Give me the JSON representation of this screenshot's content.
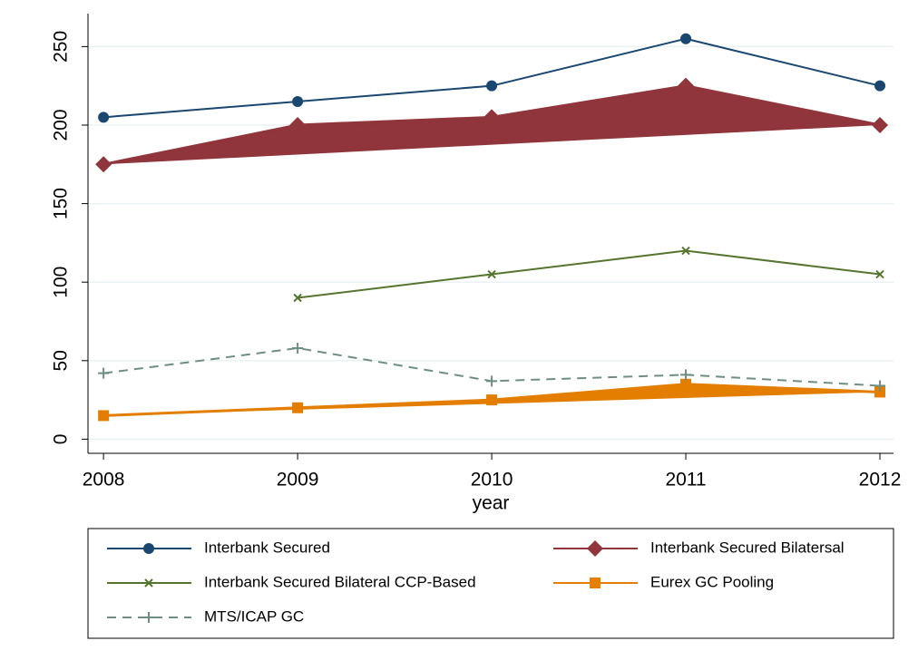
{
  "chart_data": {
    "type": "line",
    "x_label": "year",
    "x": [
      2008,
      2009,
      2010,
      2011,
      2012
    ],
    "xlim": [
      2007.92,
      2012.07
    ],
    "xticks": [
      2008,
      2009,
      2010,
      2011,
      2012
    ],
    "ylim": [
      -9,
      271
    ],
    "yticks": [
      0,
      50,
      100,
      150,
      200,
      250
    ],
    "grid": true,
    "series": [
      {
        "name": "Interbank Secured",
        "color": "#1a476f",
        "marker": "circle",
        "values": [
          205,
          215,
          225,
          255,
          225
        ]
      },
      {
        "name": "Interbank Secured Bilatersal",
        "color": "#90353b",
        "marker": "diamond",
        "fill": true,
        "values": [
          175,
          200,
          205,
          225,
          200
        ]
      },
      {
        "name": "Interbank Secured Bilateral CCP-Based",
        "color": "#55752f",
        "marker": "x",
        "values": [
          null,
          90,
          105,
          120,
          105
        ]
      },
      {
        "name": "Eurex GC Pooling",
        "color": "#e37e00",
        "marker": "square",
        "fill": true,
        "values": [
          15,
          20,
          25,
          35,
          30
        ]
      },
      {
        "name": "MTS/ICAP GC",
        "color": "#6e8e84",
        "marker": "plus",
        "dashed": true,
        "values": [
          42,
          58,
          37,
          41,
          34
        ]
      }
    ]
  }
}
